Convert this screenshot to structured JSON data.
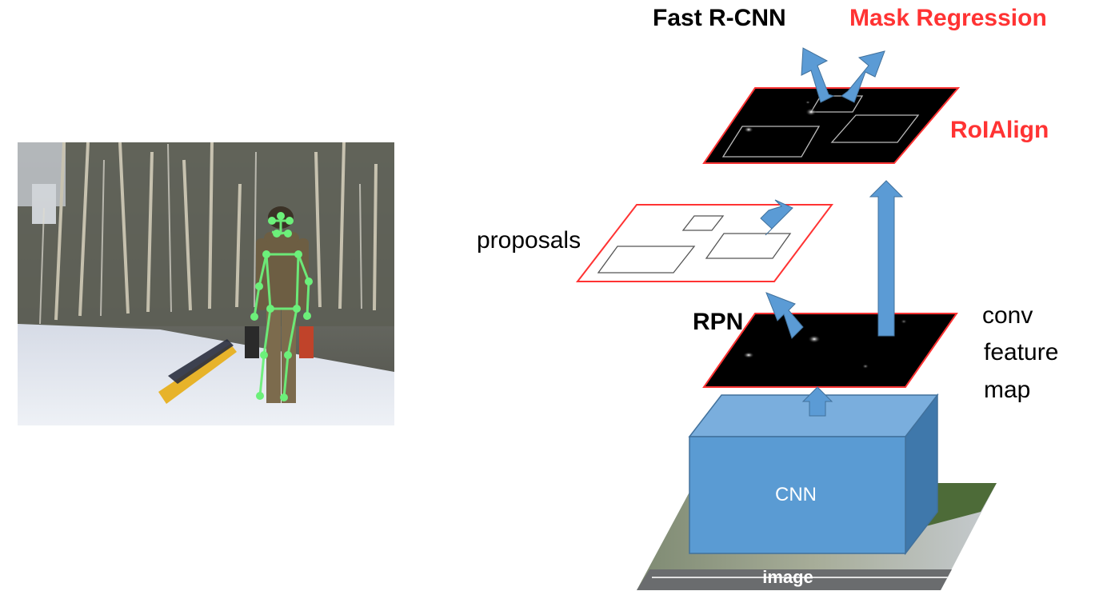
{
  "labels": {
    "fast_rcnn": "Fast R-CNN",
    "mask_regression": "Mask Regression",
    "roialign": "RoIAlign",
    "proposals": "proposals",
    "rpn": "RPN",
    "conv_feature_map_line1": "conv",
    "conv_feature_map_line2": "feature",
    "conv_feature_map_line3": "map",
    "cnn": "CNN",
    "image": "image"
  },
  "colors": {
    "arrow_blue": "#5b9bd5",
    "arrow_blue_dark": "#41719c",
    "accent_red": "#ff3333",
    "cube_front": "#5a9bd3",
    "cube_top": "#7aaedd",
    "cube_side": "#3f78ab",
    "skeleton_green": "#6cf07a",
    "feature_map": "#000000"
  },
  "photo": {
    "description_icon": "skier-keypoint-photo",
    "keypoints": [
      {
        "name": "head"
      },
      {
        "name": "neck"
      },
      {
        "name": "l-shoulder"
      },
      {
        "name": "r-shoulder"
      },
      {
        "name": "l-elbow"
      },
      {
        "name": "r-elbow"
      },
      {
        "name": "l-wrist"
      },
      {
        "name": "r-wrist"
      },
      {
        "name": "l-hip"
      },
      {
        "name": "r-hip"
      },
      {
        "name": "l-knee"
      },
      {
        "name": "r-knee"
      },
      {
        "name": "l-ankle"
      },
      {
        "name": "r-ankle"
      }
    ]
  }
}
